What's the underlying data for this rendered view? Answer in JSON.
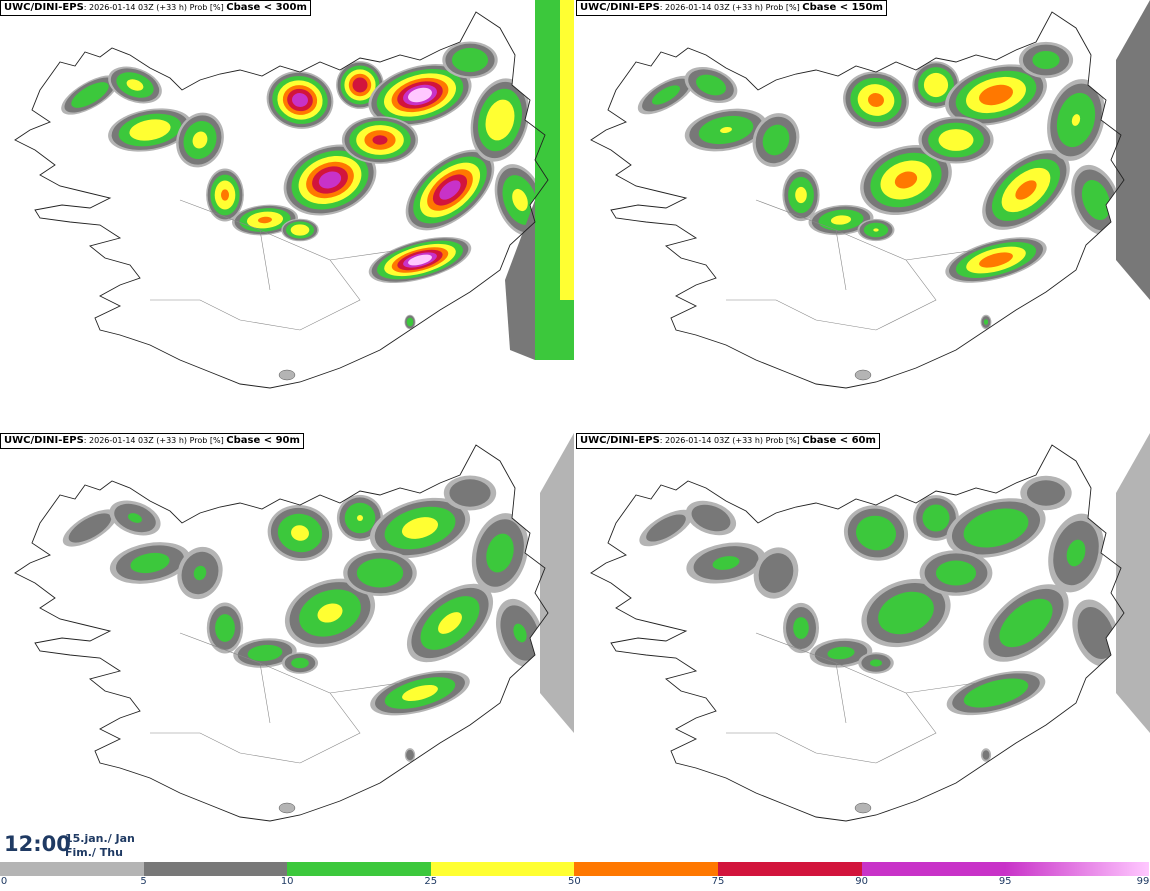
{
  "panels": [
    {
      "source": "UWC/DINI-EPS",
      "run": "2026-01-14 03Z",
      "lead": "(+33 h)",
      "prob": "Prob [%]",
      "threshold": "Cbase < 300m",
      "intensity": 1.0
    },
    {
      "source": "UWC/DINI-EPS",
      "run": "2026-01-14 03Z",
      "lead": "(+33 h)",
      "prob": "Prob [%]",
      "threshold": "Cbase < 150m",
      "intensity": 0.8
    },
    {
      "source": "UWC/DINI-EPS",
      "run": "2026-01-14 03Z",
      "lead": "(+33 h)",
      "prob": "Prob [%]",
      "threshold": "Cbase < 90m",
      "intensity": 0.62
    },
    {
      "source": "UWC/DINI-EPS",
      "run": "2026-01-14 03Z",
      "lead": "(+33 h)",
      "prob": "Prob [%]",
      "threshold": "Cbase < 60m",
      "intensity": 0.55
    }
  ],
  "time": {
    "clock": "12:00",
    "date_line1": "15.jan./ Jan",
    "date_line2": "Fim./ Thu"
  },
  "legend": {
    "ticks": [
      "0",
      "5",
      "10",
      "25",
      "50",
      "75",
      "90",
      "95",
      "99"
    ],
    "colors": [
      "#ffffff",
      "#b4b4b4",
      "#787878",
      "#3cc83c",
      "#ffff32",
      "#ff7800",
      "#d2143c",
      "#c832c8",
      "#ffc8ff"
    ]
  }
}
